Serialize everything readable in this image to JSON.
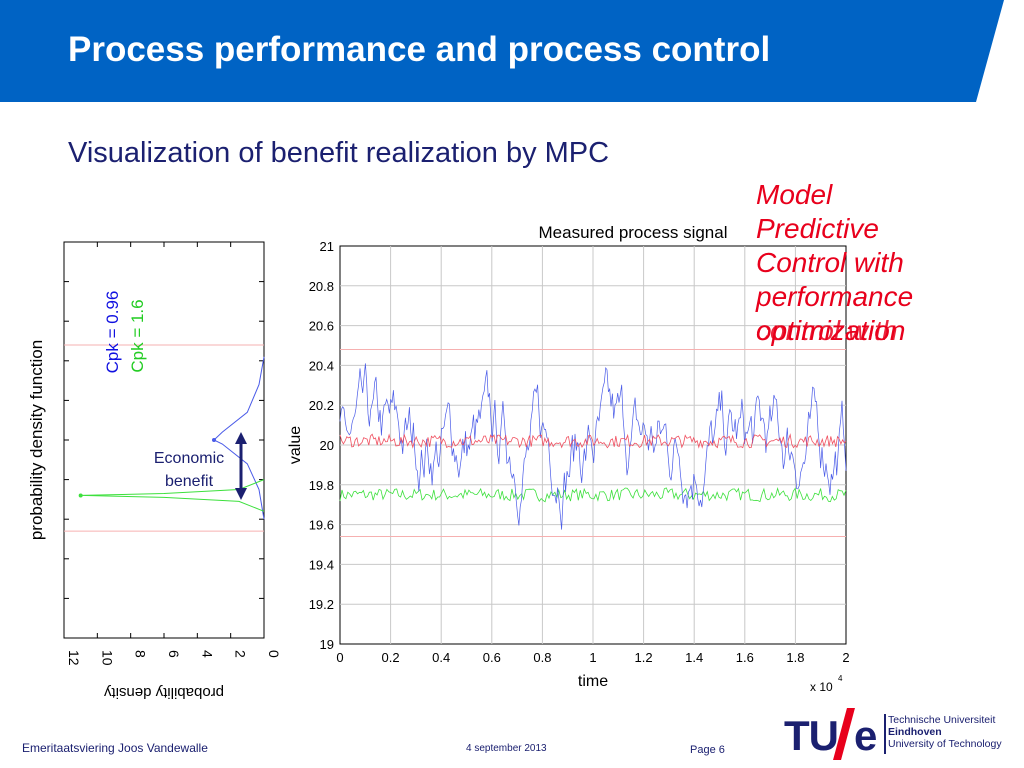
{
  "slide": {
    "title": "Process performance and process control",
    "subtitle": "Visualization of benefit realization by MPC",
    "mpc_lines": [
      "Model",
      "Predictive",
      "Control with",
      "performance",
      "optimization"
    ],
    "mpc_ghost_text": "control with"
  },
  "footer": {
    "left": "Emeritaatsviering Joos Vandewalle",
    "date": "4 september 2013",
    "page": "Page 6"
  },
  "logo": {
    "tu": "TU",
    "e": "e",
    "line1": "Technische Universiteit",
    "line2": "Eindhoven",
    "line3": "University of Technology"
  },
  "colors": {
    "banner": "#0063c4",
    "title_text": "#ffffff",
    "subtitle_text": "#1b2070",
    "accent_red": "#e8001c",
    "series_blue": "#4a5be8",
    "series_red": "#f05060",
    "series_green": "#3de03d",
    "arrow": "#1b2070"
  },
  "chart_data": [
    {
      "type": "line",
      "title": "",
      "xlabel": "probability density",
      "ylabel": "probability density function",
      "xlim": [
        12,
        0
      ],
      "x_reversed": true,
      "xticks": [
        "12",
        "10",
        "8",
        "6",
        "4",
        "2",
        "0"
      ],
      "ylim": [
        19,
        21
      ],
      "grid": true,
      "series": [
        {
          "name": "Cpk = 0.96",
          "color": "#4a5be8",
          "points": [
            [
              0,
              19.6
            ],
            [
              0.3,
              19.75
            ],
            [
              1.0,
              19.88
            ],
            [
              2.5,
              19.98
            ],
            [
              3.0,
              20.0
            ],
            [
              2.5,
              20.04
            ],
            [
              1.0,
              20.14
            ],
            [
              0.3,
              20.28
            ],
            [
              0,
              20.42
            ]
          ]
        },
        {
          "name": "Cpk = 1.6",
          "color": "#3de03d",
          "points": [
            [
              0,
              19.64
            ],
            [
              1.5,
              19.69
            ],
            [
              6,
              19.71
            ],
            [
              11,
              19.72
            ],
            [
              6,
              19.73
            ],
            [
              1.5,
              19.75
            ],
            [
              0,
              19.8
            ]
          ]
        }
      ],
      "reference_lines": [
        20.48,
        19.54
      ],
      "annotations": {
        "cpk_blue": "Cpk = 0.96",
        "cpk_green": "Cpk = 1.6",
        "benefit": [
          "Economic",
          "benefit"
        ]
      }
    },
    {
      "type": "line",
      "title": "Measured process signal",
      "xlabel": "time",
      "ylabel": "value",
      "x_multiplier": "x 10",
      "x_multiplier_exp": "4",
      "xlim": [
        0,
        2
      ],
      "ylim": [
        19,
        21
      ],
      "xticks": [
        "0",
        "0.2",
        "0.4",
        "0.6",
        "0.8",
        "1",
        "1.2",
        "1.4",
        "1.6",
        "1.8",
        "2"
      ],
      "yticks": [
        "19",
        "19.2",
        "19.4",
        "19.6",
        "19.8",
        "20",
        "20.2",
        "20.4",
        "20.6",
        "20.8",
        "21"
      ],
      "grid": true,
      "series": [
        {
          "name": "blue",
          "color": "#4a5be8",
          "mean": 20.0,
          "spread": 0.16,
          "min": 19.52,
          "max": 20.55
        },
        {
          "name": "red",
          "color": "#f05060",
          "mean": 20.02,
          "spread": 0.04
        },
        {
          "name": "green",
          "color": "#3de03d",
          "mean": 19.75,
          "spread": 0.04
        }
      ],
      "reference_lines": [
        20.48,
        19.54
      ]
    }
  ]
}
